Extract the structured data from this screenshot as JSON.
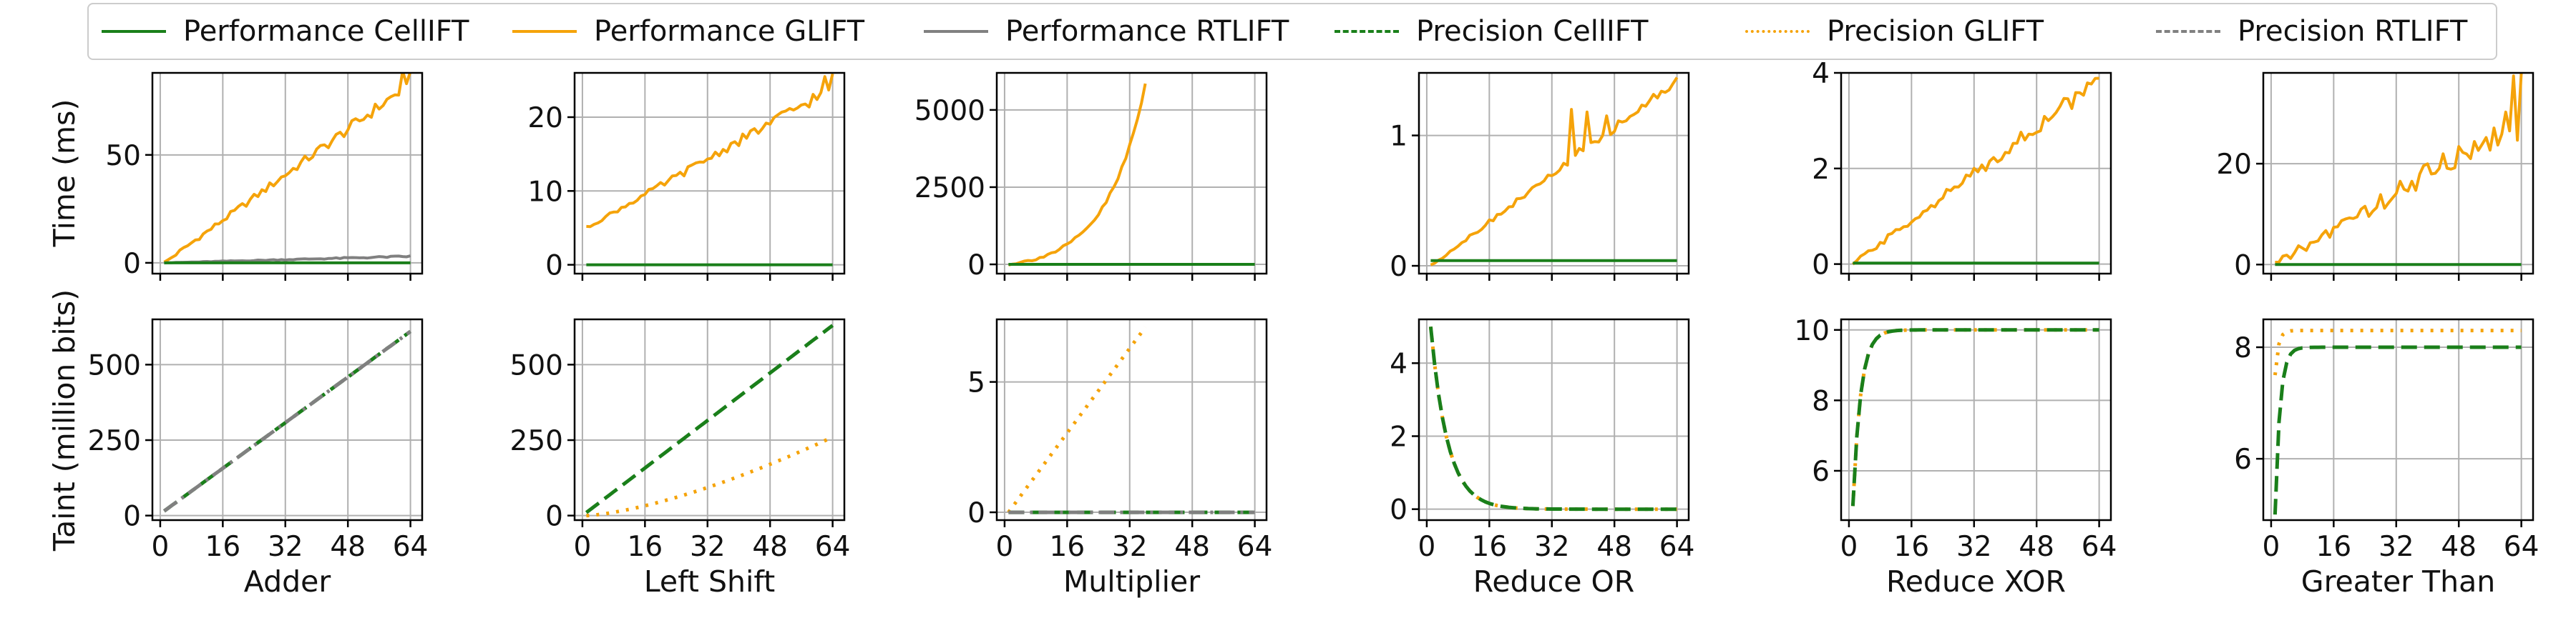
{
  "legend": [
    {
      "label": "Performance CellIFT",
      "color": "#1a7f1a",
      "dash": "solid"
    },
    {
      "label": "Performance GLIFT",
      "color": "#f5a30a",
      "dash": "solid"
    },
    {
      "label": "Performance RTLIFT",
      "color": "#808080",
      "dash": "solid"
    },
    {
      "label": "Precision CellIFT",
      "color": "#1a7f1a",
      "dash": "dashed"
    },
    {
      "label": "Precision GLIFT",
      "color": "#f5a30a",
      "dash": "dotted"
    },
    {
      "label": "Precision RTLIFT",
      "color": "#808080",
      "dash": "dashdot"
    }
  ],
  "row_ylabels": [
    "Time (ms)",
    "Taint (million bits)"
  ],
  "x_ticks": [
    0,
    16,
    32,
    48,
    64
  ],
  "chart_data": [
    {
      "type": "line",
      "panel": "Adder time",
      "xlabel": "Adder",
      "ylabel": "Time (ms)",
      "xlim": [
        -2,
        67
      ],
      "ylim": [
        -5,
        88
      ],
      "yticks": [
        0,
        50
      ],
      "series": [
        {
          "name": "Performance GLIFT",
          "kind": "linear",
          "x0": 1,
          "y0": 0,
          "x1": 64,
          "y1": 83,
          "noise": 2.5,
          "end_spike": 8
        },
        {
          "name": "Performance RTLIFT",
          "kind": "linear",
          "x0": 1,
          "y0": 0,
          "x1": 64,
          "y1": 3,
          "noise": 0.3
        },
        {
          "name": "Performance CellIFT",
          "kind": "const",
          "x0": 1,
          "x1": 64,
          "y": 0
        }
      ]
    },
    {
      "type": "line",
      "panel": "Left Shift time",
      "xlabel": "Left Shift",
      "xlim": [
        -2,
        67
      ],
      "ylim": [
        -1.2,
        26
      ],
      "yticks": [
        0,
        10,
        20
      ],
      "series": [
        {
          "name": "Performance GLIFT",
          "kind": "linear",
          "x0": 1,
          "y0": 5,
          "x1": 64,
          "y1": 24,
          "noise": 0.7,
          "end_spike": 2
        },
        {
          "name": "Performance CellIFT",
          "kind": "const",
          "x0": 1,
          "x1": 64,
          "y": 0
        }
      ]
    },
    {
      "type": "line",
      "panel": "Multiplier time",
      "xlabel": "Multiplier",
      "xlim": [
        -2,
        67
      ],
      "ylim": [
        -300,
        6200
      ],
      "yticks": [
        0,
        2500,
        5000
      ],
      "series": [
        {
          "name": "Performance GLIFT",
          "kind": "exp",
          "x0": 1,
          "x1": 36,
          "y0": 0,
          "y1": 5800,
          "k": 0.1,
          "noise": 80
        },
        {
          "name": "Performance RTLIFT",
          "kind": "const",
          "x0": 1,
          "x1": 64,
          "y": 0
        },
        {
          "name": "Performance CellIFT",
          "kind": "const",
          "x0": 1,
          "x1": 64,
          "y": 0
        }
      ]
    },
    {
      "type": "line",
      "panel": "Reduce OR time",
      "xlabel": "Reduce OR",
      "xlim": [
        -2,
        67
      ],
      "ylim": [
        -0.06,
        1.48
      ],
      "yticks": [
        0,
        1
      ],
      "series": [
        {
          "name": "Performance GLIFT",
          "kind": "linear",
          "x0": 1,
          "y0": 0,
          "x1": 64,
          "y1": 1.42,
          "noise": 0.03,
          "spikes": [
            [
              37,
              1.2
            ],
            [
              39,
              0.9
            ],
            [
              41,
              1.18
            ],
            [
              44,
              0.95
            ],
            [
              46,
              1.15
            ]
          ]
        },
        {
          "name": "Performance CellIFT",
          "kind": "const",
          "x0": 1,
          "x1": 64,
          "y": 0.04
        }
      ]
    },
    {
      "type": "line",
      "panel": "Reduce XOR time",
      "xlabel": "Reduce XOR",
      "xlim": [
        -2,
        67
      ],
      "ylim": [
        -0.2,
        4
      ],
      "yticks": [
        0,
        2,
        4
      ],
      "series": [
        {
          "name": "Performance GLIFT",
          "kind": "linear",
          "x0": 1,
          "y0": 0,
          "x1": 64,
          "y1": 3.85,
          "noise": 0.15
        },
        {
          "name": "Performance CellIFT",
          "kind": "const",
          "x0": 1,
          "x1": 64,
          "y": 0.02
        }
      ]
    },
    {
      "type": "line",
      "panel": "Greater Than time",
      "xlabel": "Greater Than",
      "xlim": [
        -2,
        67
      ],
      "ylim": [
        -1.8,
        38
      ],
      "yticks": [
        0,
        20
      ],
      "series": [
        {
          "name": "Performance GLIFT",
          "kind": "linear",
          "x0": 1,
          "y0": 0,
          "x1": 64,
          "y1": 29,
          "noise": 2.5,
          "end_spike": 9
        },
        {
          "name": "Performance CellIFT",
          "kind": "const",
          "x0": 1,
          "x1": 64,
          "y": 0
        }
      ]
    },
    {
      "type": "line",
      "panel": "Adder taint",
      "xlabel": "Adder",
      "ylabel": "Taint (million bits)",
      "xlim": [
        -2,
        67
      ],
      "ylim": [
        -15,
        650
      ],
      "yticks": [
        0,
        250,
        500
      ],
      "series": [
        {
          "name": "Precision CellIFT",
          "kind": "linear",
          "x0": 1,
          "y0": 15,
          "x1": 64,
          "y1": 610
        },
        {
          "name": "Precision RTLIFT",
          "kind": "linear",
          "x0": 1,
          "y0": 15,
          "x1": 64,
          "y1": 610
        }
      ]
    },
    {
      "type": "line",
      "panel": "Left Shift taint",
      "xlabel": "Left Shift",
      "xlim": [
        -2,
        67
      ],
      "ylim": [
        -15,
        650
      ],
      "yticks": [
        0,
        250,
        500
      ],
      "series": [
        {
          "name": "Precision CellIFT",
          "kind": "linear",
          "x0": 1,
          "y0": 10,
          "x1": 64,
          "y1": 630
        },
        {
          "name": "Precision GLIFT",
          "kind": "power",
          "x0": 1,
          "y0": 0,
          "x1": 64,
          "y1": 260,
          "p": 1.45
        }
      ]
    },
    {
      "type": "line",
      "panel": "Multiplier taint",
      "xlabel": "Multiplier",
      "xlim": [
        -2,
        67
      ],
      "ylim": [
        -0.3,
        7.4
      ],
      "yticks": [
        0,
        5
      ],
      "series": [
        {
          "name": "Precision GLIFT",
          "kind": "linear",
          "x0": 1,
          "y0": 0,
          "x1": 36,
          "y1": 7.1
        },
        {
          "name": "Precision CellIFT",
          "kind": "const",
          "x0": 1,
          "x1": 64,
          "y": 0
        },
        {
          "name": "Precision RTLIFT",
          "kind": "const",
          "x0": 1,
          "x1": 64,
          "y": 0
        }
      ]
    },
    {
      "type": "line",
      "panel": "Reduce OR taint",
      "xlabel": "Reduce OR",
      "xlim": [
        -2,
        67
      ],
      "ylim": [
        -0.3,
        5.2
      ],
      "yticks": [
        0,
        2,
        4
      ],
      "series": [
        {
          "name": "Precision GLIFT",
          "kind": "decay",
          "x0": 1,
          "x1": 64,
          "a": 5.0,
          "k": 0.23
        },
        {
          "name": "Precision CellIFT",
          "kind": "decay",
          "x0": 1,
          "x1": 64,
          "a": 5.0,
          "k": 0.23
        }
      ]
    },
    {
      "type": "line",
      "panel": "Reduce XOR taint",
      "xlabel": "Reduce XOR",
      "xlim": [
        -2,
        67
      ],
      "ylim": [
        4.6,
        10.3
      ],
      "yticks": [
        6,
        8,
        10
      ],
      "series": [
        {
          "name": "Precision GLIFT",
          "kind": "sat",
          "x0": 1,
          "x1": 64,
          "lo": 5,
          "hi": 10,
          "k": 0.5
        },
        {
          "name": "Precision CellIFT",
          "kind": "sat",
          "x0": 1,
          "x1": 64,
          "lo": 5,
          "hi": 10,
          "k": 0.5
        }
      ]
    },
    {
      "type": "line",
      "panel": "Greater Than taint",
      "xlabel": "Greater Than",
      "xlim": [
        -2,
        67
      ],
      "ylim": [
        4.9,
        8.5
      ],
      "yticks": [
        6,
        8
      ],
      "series": [
        {
          "name": "Precision GLIFT",
          "kind": "sat",
          "x0": 1,
          "x1": 64,
          "lo": 7.5,
          "hi": 8.3,
          "k": 1.2
        },
        {
          "name": "Precision CellIFT",
          "kind": "sat",
          "x0": 1,
          "x1": 64,
          "lo": 5,
          "hi": 8,
          "k": 0.8
        }
      ]
    }
  ]
}
